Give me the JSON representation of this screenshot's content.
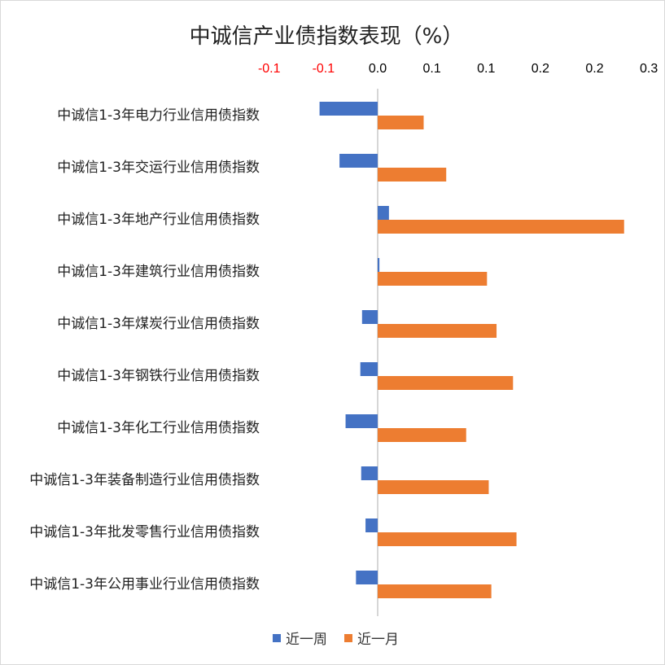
{
  "chart_data": {
    "type": "bar",
    "orientation": "horizontal",
    "title": "中诚信产业债指数表现（%）",
    "categories": [
      "中诚信1-3年电力行业信用债指数",
      "中诚信1-3年交运行业信用债指数",
      "中诚信1-3年地产行业信用债指数",
      "中诚信1-3年建筑行业信用债指数",
      "中诚信1-3年煤炭行业信用债指数",
      "中诚信1-3年钢铁行业信用债指数",
      "中诚信1-3年化工行业信用债指数",
      "中诚信1-3年装备制造行业信用债指数",
      "中诚信1-3年批发零售行业信用债指数",
      "中诚信1-3年公用事业行业信用债指数"
    ],
    "series": [
      {
        "name": "近一周",
        "color": "#4472C4",
        "values": [
          -0.067,
          -0.044,
          0.013,
          0.002,
          -0.018,
          -0.02,
          -0.037,
          -0.019,
          -0.014,
          -0.025
        ]
      },
      {
        "name": "近一月",
        "color": "#ED7D31",
        "values": [
          0.053,
          0.079,
          0.284,
          0.126,
          0.137,
          0.156,
          0.102,
          0.128,
          0.16,
          0.131
        ]
      }
    ],
    "xlim": [
      -0.125,
      0.3
    ],
    "x_ticks": [
      {
        "value": -0.125,
        "label": "-0.1",
        "color": "#FF0000"
      },
      {
        "value": -0.0625,
        "label": "-0.1",
        "color": "#FF0000"
      },
      {
        "value": 0.0,
        "label": "0.0",
        "color": "#000000"
      },
      {
        "value": 0.0625,
        "label": "0.1",
        "color": "#000000"
      },
      {
        "value": 0.125,
        "label": "0.1",
        "color": "#000000"
      },
      {
        "value": 0.1875,
        "label": "0.2",
        "color": "#000000"
      },
      {
        "value": 0.25,
        "label": "0.2",
        "color": "#000000"
      },
      {
        "value": 0.3125,
        "label": "0.3",
        "color": "#000000"
      }
    ],
    "axis_position": "top",
    "grid": false,
    "legend_position": "bottom"
  }
}
